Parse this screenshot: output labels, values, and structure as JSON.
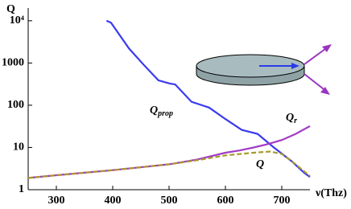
{
  "chart_data": {
    "type": "line",
    "y_label": "Q",
    "x_label": "ν(Thz)",
    "log_y": true,
    "xlim": [
      250,
      750
    ],
    "xticks": [
      300,
      400,
      500,
      600,
      700
    ],
    "ylim": [
      1,
      20000
    ],
    "yticks": [
      1,
      10,
      100,
      1000,
      {
        "value": 10000,
        "label": "10⁴"
      }
    ],
    "series": [
      {
        "name": "Q",
        "subscript": "prop",
        "color": "#3a3af0",
        "dashed": false,
        "x": [
          389,
          397,
          429,
          454,
          481,
          500,
          511,
          540,
          571,
          600,
          629,
          657,
          686,
          717,
          740,
          750
        ],
        "values": [
          10000,
          9000,
          2200,
          940,
          390,
          330,
          310,
          120,
          88,
          47,
          26,
          21,
          10,
          4.8,
          2.5,
          2
        ]
      },
      {
        "name": "Q",
        "subscript": "r",
        "color": "#a23cc4",
        "dashed": false,
        "x": [
          250,
          300,
          400,
          500,
          550,
          600,
          625,
          650,
          675,
          700,
          725,
          750
        ],
        "values": [
          1.9,
          2.2,
          2.9,
          4.0,
          5.2,
          7.5,
          8.5,
          10,
          12,
          15,
          21,
          32
        ]
      },
      {
        "name": "Q",
        "color": "#a89a2c",
        "dashed": true,
        "x": [
          250,
          300,
          400,
          500,
          550,
          600,
          650,
          680,
          700,
          720,
          740,
          750
        ],
        "values": [
          1.9,
          2.2,
          2.9,
          4.0,
          5.0,
          6.5,
          7.5,
          8,
          7,
          4.5,
          2.7,
          2.1
        ]
      }
    ]
  }
}
